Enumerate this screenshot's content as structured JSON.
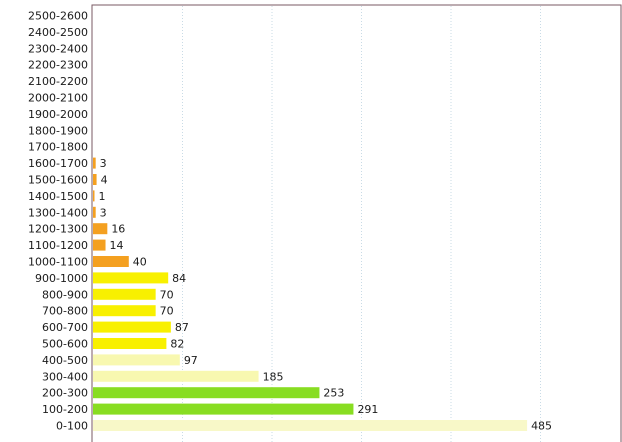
{
  "chart_data": {
    "type": "bar",
    "orientation": "horizontal",
    "title": "",
    "xlabel": "",
    "ylabel": "",
    "xlim": [
      0,
      600
    ],
    "grid": true,
    "legend": "none",
    "categories": [
      "0-100",
      "100-200",
      "200-300",
      "300-400",
      "400-500",
      "500-600",
      "600-700",
      "700-800",
      "800-900",
      "900-1000",
      "1000-1100",
      "1100-1200",
      "1200-1300",
      "1300-1400",
      "1400-1500",
      "1500-1600",
      "1600-1700",
      "1700-1800",
      "1800-1900",
      "1900-2000",
      "2000-2100",
      "2100-2200",
      "2200-2300",
      "2300-2400",
      "2400-2500",
      "2500-2600"
    ],
    "values": [
      485,
      291,
      253,
      185,
      97,
      82,
      87,
      70,
      70,
      84,
      40,
      14,
      16,
      3,
      1,
      4,
      3,
      null,
      null,
      null,
      null,
      null,
      null,
      null,
      null,
      null
    ],
    "data_labels": [
      "485",
      "291",
      "253",
      "185",
      "97",
      "82",
      "87",
      "70",
      "70",
      "84",
      "40",
      "14",
      "16",
      "3",
      "1",
      "4",
      "3",
      "",
      "",
      "",
      "",
      "",
      "",
      "",
      "",
      ""
    ],
    "bar_colors": [
      "#f8f8c8",
      "#88dd22",
      "#88dd22",
      "#f8f8b0",
      "#f8f8b0",
      "#f8f000",
      "#f8f000",
      "#f8f000",
      "#f8f000",
      "#f8f000",
      "#f4a020",
      "#f4a020",
      "#f4a020",
      "#f4a020",
      "#f4a020",
      "#f4a020",
      "#f4a020",
      "#f4a020",
      "#f4a020",
      "#f4a020",
      "#f4a020",
      "#f4a020",
      "#f4a020",
      "#f4a020",
      "#f4a020",
      "#f4a020"
    ]
  }
}
